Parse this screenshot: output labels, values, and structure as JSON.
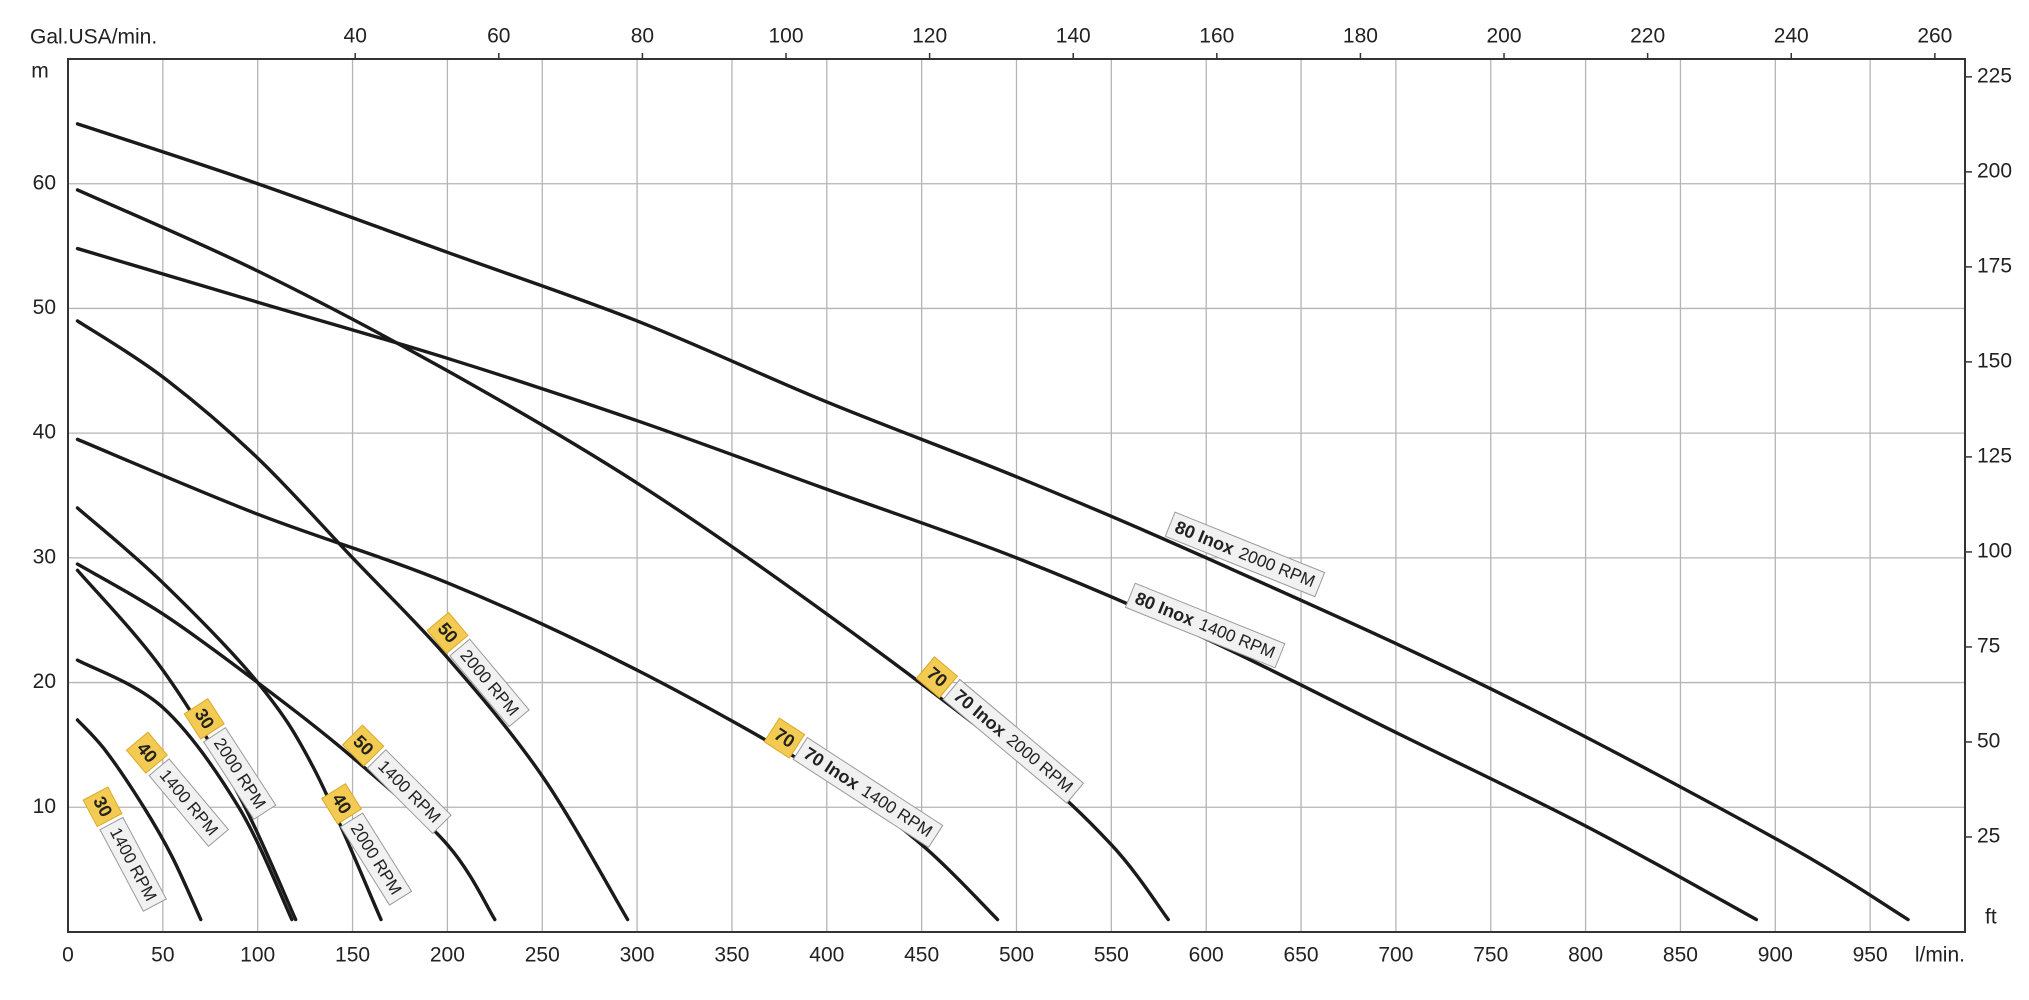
{
  "chart_data": {
    "type": "line",
    "x_label": "l/min.",
    "x2_label": "Gal.USA/min.",
    "y_label": "m",
    "y2_label": "ft",
    "xlim": [
      0,
      1000
    ],
    "xticks": [
      0,
      50,
      100,
      150,
      200,
      250,
      300,
      350,
      400,
      450,
      500,
      550,
      600,
      650,
      700,
      750,
      800,
      850,
      900,
      950
    ],
    "x2lim": [
      0,
      264.2
    ],
    "x2ticks": [
      40,
      60,
      80,
      100,
      120,
      140,
      160,
      180,
      200,
      220,
      240,
      260
    ],
    "ylim": [
      0,
      70
    ],
    "yticks": [
      10,
      20,
      30,
      40,
      50,
      60
    ],
    "y2lim": [
      0,
      229.7
    ],
    "y2ticks": [
      25,
      50,
      75,
      100,
      125,
      150,
      175,
      200,
      225
    ],
    "grid": true,
    "color": "#1a1a1a",
    "series": [
      {
        "badge": "30",
        "rpm": "1400 RPM",
        "x": [
          5,
          20,
          40,
          55,
          70
        ],
        "values": [
          17,
          14.5,
          10,
          6,
          1
        ]
      },
      {
        "badge": "40",
        "rpm": "1400 RPM",
        "x": [
          5,
          50,
          90,
          118
        ],
        "values": [
          21.8,
          18,
          10,
          1
        ]
      },
      {
        "badge": "30",
        "rpm": "2000 RPM",
        "x": [
          5,
          50,
          90,
          120
        ],
        "values": [
          29,
          21,
          11,
          1
        ]
      },
      {
        "badge": "40",
        "rpm": "2000 RPM",
        "x": [
          5,
          50,
          100,
          130,
          165
        ],
        "values": [
          34,
          28,
          20,
          13,
          1
        ]
      },
      {
        "badge": "50",
        "rpm": "1400 RPM",
        "x": [
          5,
          50,
          100,
          150,
          200,
          225
        ],
        "values": [
          29.5,
          25.5,
          20,
          14,
          7,
          1
        ]
      },
      {
        "badge": "50",
        "rpm": "2000 RPM",
        "x": [
          5,
          50,
          100,
          150,
          200,
          250,
          295
        ],
        "values": [
          49,
          44.5,
          38,
          30,
          22,
          12.5,
          1
        ]
      },
      {
        "badge": "70",
        "model": "70 Inox",
        "rpm": "1400 RPM",
        "x": [
          5,
          100,
          200,
          300,
          400,
          450,
          490
        ],
        "values": [
          39.5,
          33.5,
          28,
          21,
          12.5,
          7,
          1
        ]
      },
      {
        "badge": "70",
        "model": "70 Inox",
        "rpm": "2000 RPM",
        "x": [
          5,
          100,
          200,
          300,
          400,
          500,
          550,
          580
        ],
        "values": [
          59.5,
          53,
          45,
          36,
          25.5,
          14,
          7,
          1
        ]
      },
      {
        "model": "80 Inox",
        "rpm": "1400 RPM",
        "x": [
          5,
          100,
          200,
          300,
          400,
          500,
          600,
          700,
          800,
          890
        ],
        "values": [
          54.8,
          50.5,
          46,
          41,
          35.5,
          30,
          23.5,
          16,
          8.5,
          1
        ]
      },
      {
        "model": "80 Inox",
        "rpm": "2000 RPM",
        "x": [
          5,
          100,
          200,
          300,
          400,
          500,
          600,
          750,
          900,
          970
        ],
        "values": [
          64.8,
          60,
          54.5,
          49,
          42.5,
          36.5,
          30,
          19.5,
          7.5,
          1
        ]
      }
    ]
  }
}
